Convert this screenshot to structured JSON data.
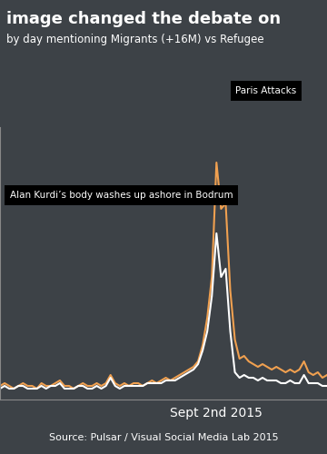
{
  "chart_data": {
    "type": "line",
    "title": "image changed the debate on",
    "subtitle": "by day mentioning Migrants (+16M) vs Refugee",
    "categories": [
      null,
      null,
      null,
      null,
      null,
      null,
      null,
      null,
      null,
      null,
      null,
      null,
      null,
      null,
      null,
      null,
      null,
      null,
      null,
      null,
      null,
      null,
      null,
      null,
      null,
      null,
      null,
      null,
      null,
      null,
      null,
      null,
      null,
      null,
      null,
      null,
      null,
      null,
      null,
      null,
      null,
      null,
      null,
      null,
      null,
      null,
      null,
      "Sept 2nd 2015",
      null,
      null,
      null,
      null,
      null,
      null,
      null,
      null,
      null,
      null,
      null,
      null,
      null,
      null,
      null,
      null,
      null,
      null,
      null,
      null,
      null,
      null,
      null,
      null
    ],
    "series": [
      {
        "color": "#f0a050",
        "values": [
          5,
          6,
          5,
          4,
          5,
          6,
          5,
          5,
          4,
          6,
          5,
          5,
          6,
          7,
          5,
          5,
          4,
          5,
          6,
          5,
          5,
          6,
          5,
          6,
          9,
          6,
          5,
          6,
          5,
          6,
          6,
          5,
          6,
          7,
          6,
          7,
          8,
          7,
          8,
          9,
          10,
          11,
          12,
          14,
          20,
          30,
          45,
          87,
          70,
          72,
          40,
          22,
          15,
          16,
          14,
          13,
          12,
          13,
          12,
          11,
          12,
          11,
          10,
          11,
          10,
          11,
          14,
          10,
          9,
          10,
          8,
          9
        ]
      },
      {
        "color": "#ffffff",
        "values": [
          4,
          5,
          4,
          4,
          5,
          5,
          4,
          4,
          4,
          5,
          4,
          5,
          5,
          6,
          4,
          4,
          4,
          5,
          5,
          4,
          4,
          5,
          4,
          5,
          8,
          5,
          4,
          5,
          5,
          5,
          5,
          5,
          6,
          6,
          6,
          6,
          7,
          7,
          7,
          8,
          9,
          10,
          11,
          13,
          18,
          25,
          38,
          61,
          45,
          48,
          25,
          10,
          8,
          9,
          8,
          8,
          7,
          8,
          7,
          7,
          7,
          6,
          6,
          7,
          6,
          6,
          9,
          6,
          6,
          6,
          5,
          5
        ]
      }
    ],
    "ylim": [
      0,
      100
    ],
    "tick_labels": "x",
    "annotations": [
      "Alan Kurdi’s body washes up ashore in Bodrum",
      "Paris Attacks"
    ],
    "source": "Source: Pulsar / Visual Social Media Lab 2015"
  }
}
